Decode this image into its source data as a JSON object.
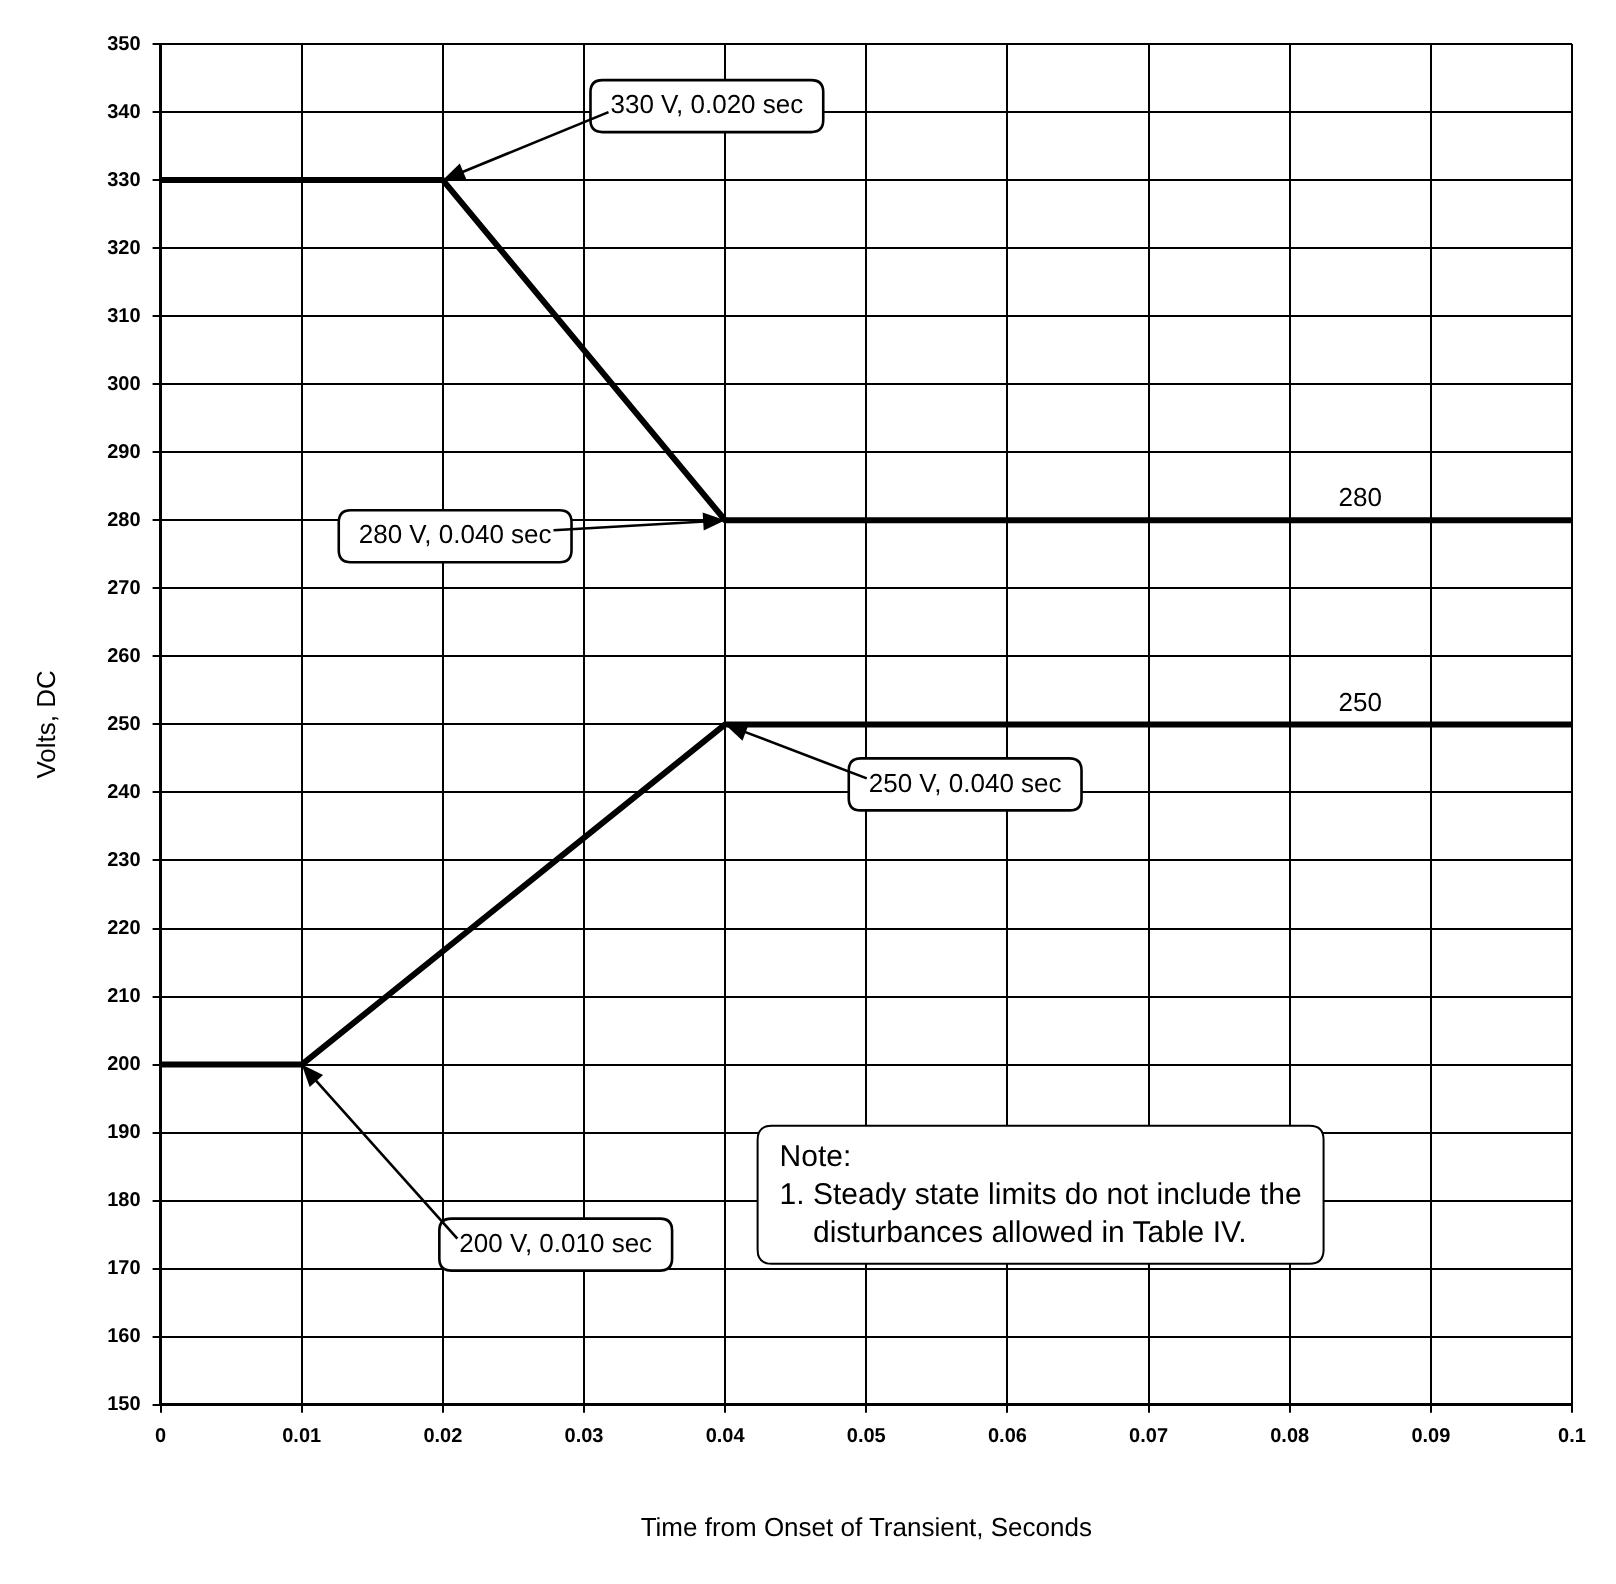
{
  "chart_data": {
    "type": "line",
    "xlabel": "Time from Onset of Transient, Seconds",
    "ylabel": "Volts, DC",
    "series": [
      {
        "color": "#000000",
        "x": [
          0,
          0.02,
          0.04,
          0.1
        ],
        "values": [
          330,
          330,
          280,
          280
        ]
      },
      {
        "color": "#000000",
        "x": [
          0,
          0.01,
          0.04,
          0.1
        ],
        "values": [
          200,
          200,
          250,
          250
        ]
      }
    ],
    "xlim": [
      0,
      0.1
    ],
    "xticks": [
      0,
      0.01,
      0.02,
      0.03,
      0.04,
      0.05,
      0.06,
      0.07,
      0.08,
      0.09,
      0.1
    ],
    "ylim": [
      150,
      350
    ],
    "yticks": [
      150,
      160,
      170,
      180,
      190,
      200,
      210,
      220,
      230,
      240,
      250,
      260,
      270,
      280,
      290,
      300,
      310,
      320,
      330,
      340,
      350
    ],
    "grid": true,
    "legend": false,
    "marker": "none",
    "line_style": "solid",
    "annotations": [
      {
        "text": "330 V, 0.020 sec",
        "x": 0.02,
        "y": 330
      },
      {
        "text": "280 V, 0.040 sec",
        "x": 0.04,
        "y": 280
      },
      {
        "text": "250 V, 0.040 sec",
        "x": 0.04,
        "y": 250
      },
      {
        "text": "200 V, 0.010 sec",
        "x": 0.01,
        "y": 200
      },
      {
        "text": "280",
        "x": 0.085,
        "y": 280
      },
      {
        "text": "250",
        "x": 0.085,
        "y": 250
      },
      "Note:\n1. Steady state limits do not include the\n    disturbances allowed in Table IV."
    ]
  }
}
